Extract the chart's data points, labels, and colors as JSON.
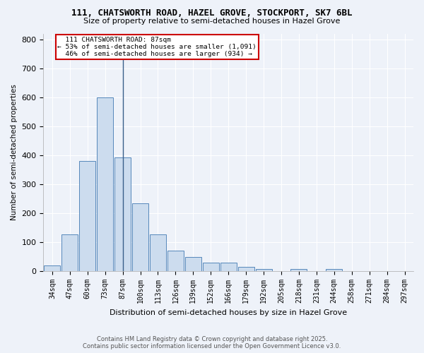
{
  "title": "111, CHATSWORTH ROAD, HAZEL GROVE, STOCKPORT, SK7 6BL",
  "subtitle": "Size of property relative to semi-detached houses in Hazel Grove",
  "xlabel": "Distribution of semi-detached houses by size in Hazel Grove",
  "ylabel": "Number of semi-detached properties",
  "footer_line1": "Contains HM Land Registry data © Crown copyright and database right 2025.",
  "footer_line2": "Contains public sector information licensed under the Open Government Licence v3.0.",
  "bar_labels": [
    "34sqm",
    "47sqm",
    "60sqm",
    "73sqm",
    "87sqm",
    "100sqm",
    "113sqm",
    "126sqm",
    "139sqm",
    "152sqm",
    "166sqm",
    "179sqm",
    "192sqm",
    "205sqm",
    "218sqm",
    "231sqm",
    "244sqm",
    "258sqm",
    "271sqm",
    "284sqm",
    "297sqm"
  ],
  "bar_values": [
    20,
    128,
    380,
    600,
    393,
    235,
    128,
    72,
    50,
    30,
    30,
    15,
    8,
    0,
    8,
    0,
    8,
    0,
    0,
    0,
    0
  ],
  "bar_color": "#ccdcee",
  "bar_edge_color": "#5588bb",
  "property_value": 87,
  "property_label": "111 CHATSWORTH ROAD: 87sqm",
  "pct_smaller": 53,
  "count_smaller": 1091,
  "pct_larger": 46,
  "count_larger": 934,
  "vline_color": "#3a5f8a",
  "annotation_box_edgecolor": "#cc0000",
  "ylim": [
    0,
    820
  ],
  "yticks": [
    0,
    100,
    200,
    300,
    400,
    500,
    600,
    700,
    800
  ],
  "bg_color": "#eef2f9",
  "grid_color": "#ffffff"
}
